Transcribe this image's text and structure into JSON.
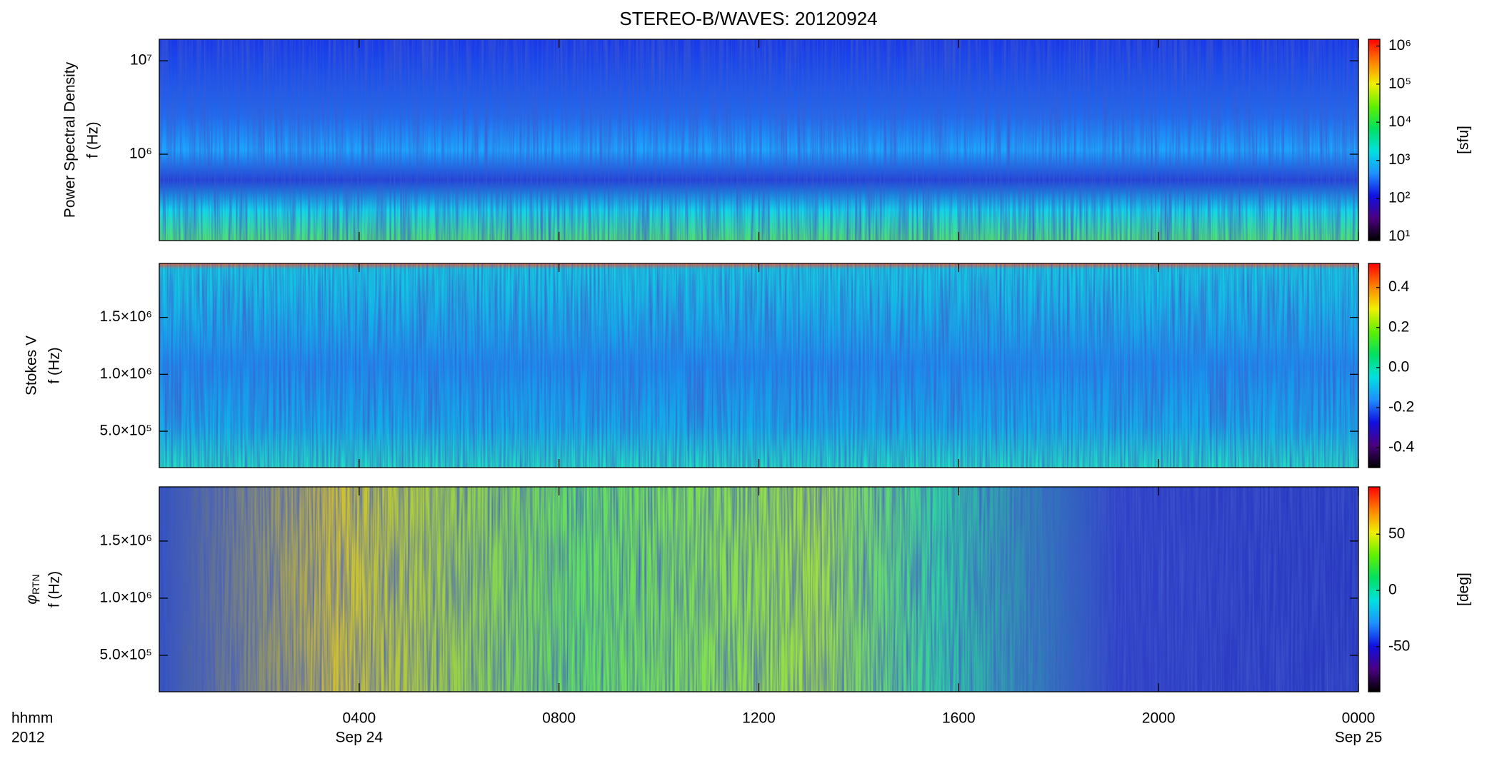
{
  "chart_data": {
    "type": "spectrogram",
    "title": "STEREO-B/WAVES: 20120924",
    "xlim": [
      0,
      24
    ],
    "xticks": [
      {
        "value": 4,
        "label": "0400"
      },
      {
        "value": 8,
        "label": "0800"
      },
      {
        "value": 12,
        "label": "1200"
      },
      {
        "value": 16,
        "label": "1600"
      },
      {
        "value": 20,
        "label": "2000"
      },
      {
        "value": 24,
        "label": "0000"
      }
    ],
    "date_labels": [
      {
        "value": 4,
        "label": "Sep 24"
      },
      {
        "value": 24,
        "label": "Sep 25"
      }
    ],
    "x_axis_labels": [
      "hhmm",
      "2012"
    ],
    "colormap": [
      "#000000",
      "#4b0082",
      "#1010e0",
      "#1e90ff",
      "#00e0e0",
      "#00e060",
      "#60f000",
      "#f0f000",
      "#ff8000",
      "#ff0000"
    ],
    "panels": [
      {
        "ylabel": [
          "Power Spectral Density",
          "f (Hz)"
        ],
        "ylog": true,
        "ylim": [
          119000,
          17000000
        ],
        "yticks": [
          {
            "value": 1000000,
            "label": "10⁶"
          },
          {
            "value": 10000000,
            "label": "10⁷"
          }
        ],
        "colorbar": {
          "label": "[sfu]",
          "log": true,
          "lim": [
            7.9,
            1500000
          ],
          "ticks": [
            {
              "value": 10,
              "label": "10¹"
            },
            {
              "value": 100,
              "label": "10²"
            },
            {
              "value": 1000,
              "label": "10³"
            },
            {
              "value": 10000,
              "label": "10⁴"
            },
            {
              "value": 100000,
              "label": "10⁵"
            },
            {
              "value": 1000000,
              "label": "10⁶"
            }
          ]
        }
      },
      {
        "ylabel": [
          "Stokes V",
          "f (Hz)"
        ],
        "ylog": false,
        "ylim": [
          181000,
          1974000
        ],
        "yticks": [
          {
            "value": 500000,
            "label": "5.0×10⁵"
          },
          {
            "value": 1000000,
            "label": "1.0×10⁶"
          },
          {
            "value": 1500000,
            "label": "1.5×10⁶"
          }
        ],
        "colorbar": {
          "log": false,
          "lim": [
            -0.5,
            0.52
          ],
          "ticks": [
            -0.4,
            -0.2,
            {
              "value": 0,
              "label": "0.0"
            },
            0.2,
            0.4
          ]
        }
      },
      {
        "ylabel_symbol": "φ",
        "ylabel_subscript": "RTN",
        "ylabel": [
          "f (Hz)"
        ],
        "ylog": false,
        "ylim": [
          181000,
          1974000
        ],
        "yticks": [
          {
            "value": 500000,
            "label": "5.0×10⁵"
          },
          {
            "value": 1000000,
            "label": "1.0×10⁶"
          },
          {
            "value": 1500000,
            "label": "1.5×10⁶"
          }
        ],
        "colorbar": {
          "label": "[deg]",
          "log": false,
          "lim": [
            -90,
            92
          ],
          "ticks": [
            -50,
            0,
            50
          ]
        }
      }
    ]
  }
}
